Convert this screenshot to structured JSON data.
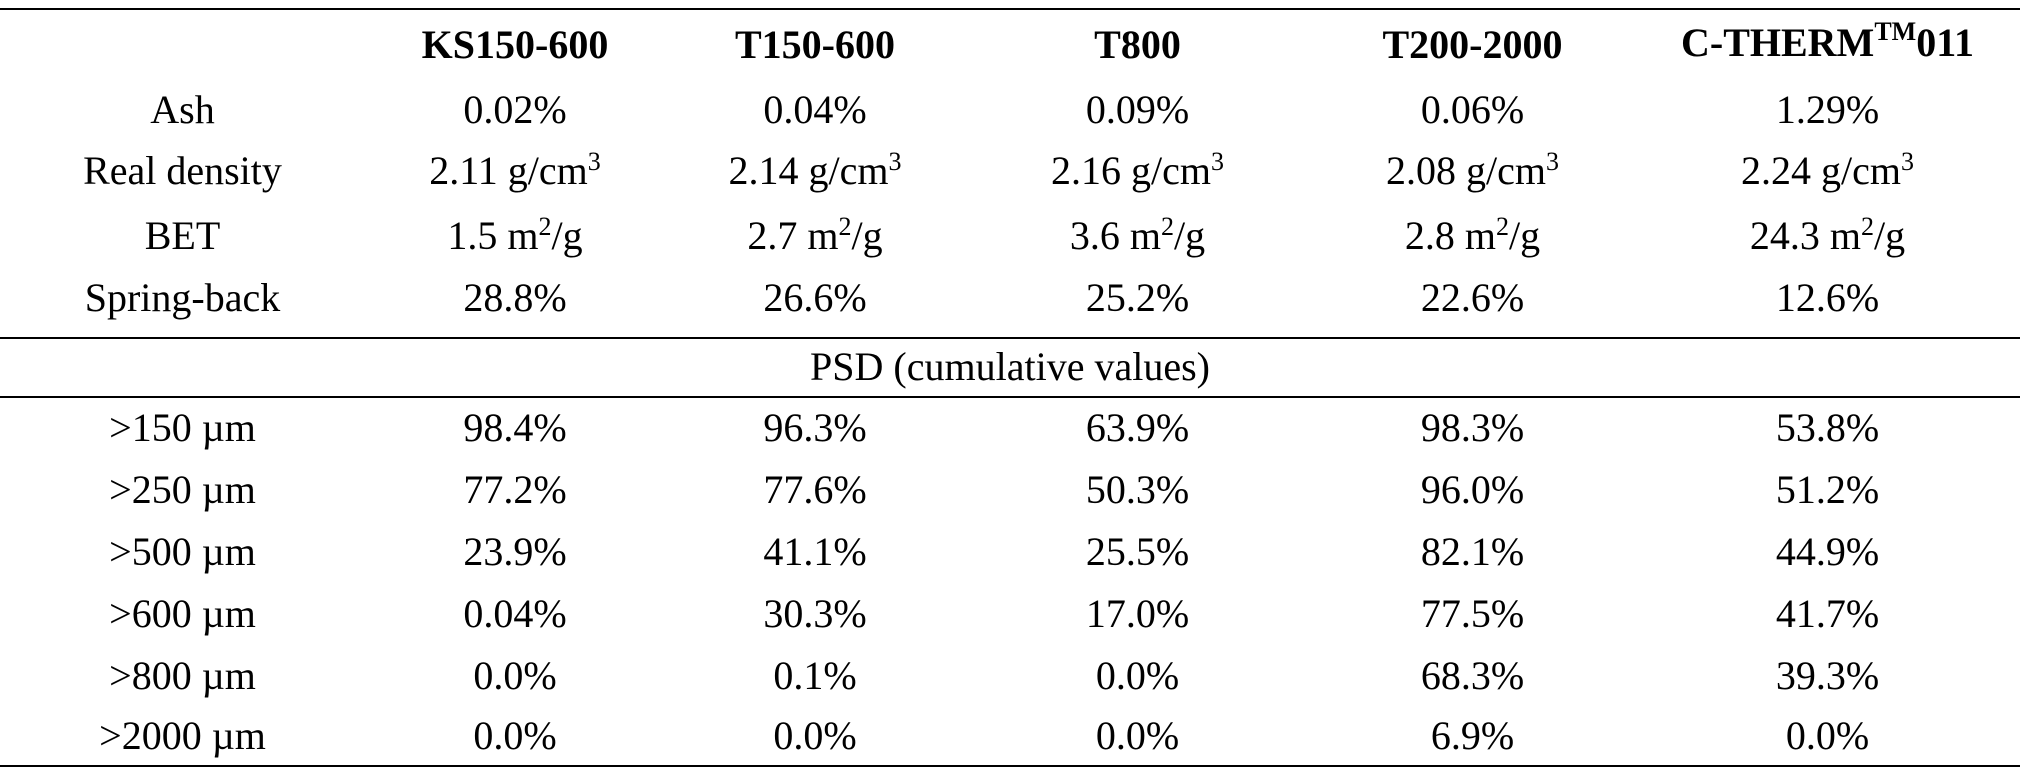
{
  "table": {
    "header": {
      "c0": "",
      "c1": "KS150-600",
      "c2": "T150-600",
      "c3": "T800",
      "c4": "T200-2000",
      "c5_main": "C-THERM",
      "c5_sup": "TM",
      "c5_tail": "011"
    },
    "properties": [
      {
        "label": "Ash",
        "v1": "0.02%",
        "v2": "0.04%",
        "v3": "0.09%",
        "v4": "0.06%",
        "v5": "1.29%"
      },
      {
        "label": "Real density",
        "v1": "2.11 g/cm",
        "v2": "2.14 g/cm",
        "v3": "2.16 g/cm",
        "v4": "2.08 g/cm",
        "v5": "2.24 g/cm",
        "sup": "3"
      },
      {
        "label": "BET",
        "v1a": "1.5 m",
        "v2a": "2.7 m",
        "v3a": "3.6 m",
        "v4a": "2.8 m",
        "v5a": "24.3 m",
        "sup": "2",
        "tail": "/g"
      },
      {
        "label": "Spring-back",
        "v1": "28.8%",
        "v2": "26.6%",
        "v3": "25.2%",
        "v4": "22.6%",
        "v5": "12.6%"
      }
    ],
    "psd_title": "PSD (cumulative values)",
    "psd_rows": [
      {
        "label": ">150 µm",
        "v1": "98.4%",
        "v2": "96.3%",
        "v3": "63.9%",
        "v4": "98.3%",
        "v5": "53.8%"
      },
      {
        "label": ">250 µm",
        "v1": "77.2%",
        "v2": "77.6%",
        "v3": "50.3%",
        "v4": "96.0%",
        "v5": "51.2%"
      },
      {
        "label": ">500 µm",
        "v1": "23.9%",
        "v2": "41.1%",
        "v3": "25.5%",
        "v4": "82.1%",
        "v5": "44.9%"
      },
      {
        "label": ">600 µm",
        "v1": "0.04%",
        "v2": "30.3%",
        "v3": "17.0%",
        "v4": "77.5%",
        "v5": "41.7%"
      },
      {
        "label": ">800 µm",
        "v1": "0.0%",
        "v2": "0.1%",
        "v3": "0.0%",
        "v4": "68.3%",
        "v5": "39.3%"
      },
      {
        "label": ">2000 µm",
        "v1": "0.0%",
        "v2": "0.0%",
        "v3": "0.0%",
        "v4": "6.9%",
        "v5": "0.0%"
      }
    ]
  }
}
